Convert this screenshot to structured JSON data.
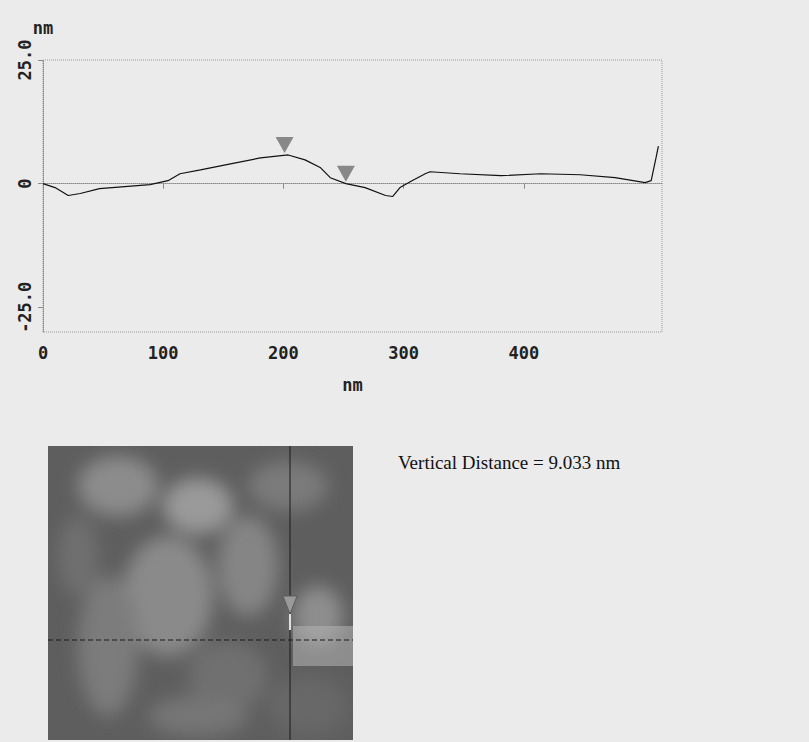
{
  "chart_data": {
    "type": "line",
    "x_label": "nm",
    "y_label": "nm",
    "annotation": "Vertical Distance = 9.033 nm",
    "x": [
      0,
      10,
      21,
      31,
      47,
      68,
      89,
      104,
      114,
      131,
      156,
      181,
      204,
      218,
      231,
      239,
      252,
      268,
      285,
      291,
      297,
      307,
      318,
      322,
      347,
      381,
      414,
      447,
      476,
      501,
      506,
      510,
      512
    ],
    "values": [
      0,
      -0.8,
      -2.4,
      -2,
      -1,
      -0.6,
      -0.2,
      0.6,
      2,
      2.8,
      4,
      5.2,
      5.8,
      4.8,
      3.2,
      1.2,
      0,
      -0.8,
      -2.4,
      -2.6,
      -0.8,
      0.6,
      2,
      2.4,
      2,
      1.6,
      2,
      1.8,
      1.2,
      0.2,
      0.6,
      5.2,
      7.6
    ],
    "color": "#111111",
    "cursors": [
      {
        "x": 201,
        "y": 5.8
      },
      {
        "x": 252,
        "y": 0
      }
    ],
    "xlim": [
      0,
      515
    ],
    "xticks": [
      0,
      100,
      200,
      300,
      400
    ],
    "ylim": [
      -30,
      25
    ],
    "yticks": [
      {
        "value": -25,
        "label": "-25.0"
      },
      0,
      {
        "value": 25,
        "label": "25.0"
      }
    ],
    "grid": false
  }
}
